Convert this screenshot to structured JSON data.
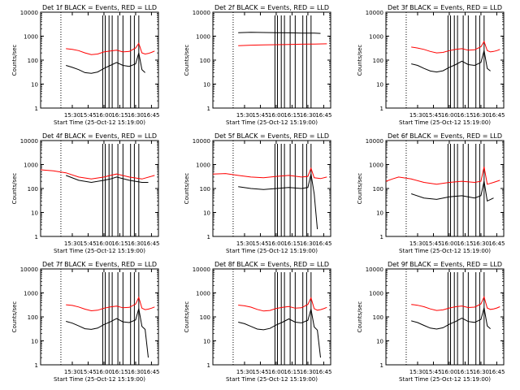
{
  "chart_data": [
    {
      "type": "line",
      "title": "Det 1f BLACK = Events, RED = LLD",
      "xlabel": "Start Time (25-Oct-12 15:19:00)",
      "ylabel": "Counts/sec",
      "xticks": [
        "15:30",
        "15:45",
        "16:00",
        "16:15",
        "16:30",
        "16:45"
      ],
      "yticks": [
        "1",
        "10",
        "100",
        "1000",
        "10000"
      ],
      "ylim": [
        1,
        10000
      ],
      "log_y": true,
      "series": [
        {
          "color": "#ff0000",
          "x": [
            15.4,
            15.5,
            15.6,
            15.7,
            15.8,
            15.9,
            16.0,
            16.1,
            16.2,
            16.3,
            16.4,
            16.5,
            16.55,
            16.6,
            16.65,
            16.7,
            16.75,
            16.8
          ],
          "y": [
            300,
            280,
            250,
            200,
            170,
            180,
            220,
            240,
            260,
            220,
            230,
            320,
            500,
            200,
            180,
            190,
            210,
            240
          ]
        },
        {
          "color": "#000000",
          "x": [
            15.4,
            15.5,
            15.6,
            15.7,
            15.8,
            15.9,
            16.0,
            16.1,
            16.2,
            16.3,
            16.4,
            16.5,
            16.55,
            16.6,
            16.65
          ],
          "y": [
            60,
            50,
            40,
            30,
            28,
            32,
            45,
            60,
            80,
            60,
            55,
            70,
            200,
            40,
            30
          ]
        }
      ]
    },
    {
      "type": "line",
      "title": "Det 2f BLACK = Events, RED = LLD",
      "xlabel": "Start Time (25-Oct-12 15:19:00)",
      "ylabel": "Counts/sec",
      "xticks": [
        "15:30",
        "15:45",
        "16:00",
        "16:15",
        "16:30",
        "16:45"
      ],
      "yticks": [
        "1",
        "10",
        "100",
        "1000",
        "10000"
      ],
      "ylim": [
        1,
        10000
      ],
      "log_y": true,
      "series": [
        {
          "color": "#ff0000",
          "x": [
            15.4,
            15.6,
            15.8,
            16.0,
            16.2,
            16.4,
            16.6,
            16.8
          ],
          "y": [
            400,
            420,
            430,
            440,
            450,
            460,
            470,
            480
          ]
        },
        {
          "color": "#000000",
          "x": [
            15.4,
            15.6,
            15.8,
            16.0,
            16.2,
            16.4,
            16.6,
            16.7
          ],
          "y": [
            1400,
            1450,
            1420,
            1400,
            1380,
            1350,
            1340,
            1300
          ]
        }
      ]
    },
    {
      "type": "line",
      "title": "Det 3f BLACK = Events, RED = LLD",
      "xlabel": "Start Time (25-Oct-12 15:19:00)",
      "ylabel": "Counts/sec",
      "xticks": [
        "15:30",
        "15:45",
        "16:00",
        "16:15",
        "16:30",
        "16:45"
      ],
      "yticks": [
        "1",
        "10",
        "100",
        "1000",
        "10000"
      ],
      "ylim": [
        1,
        10000
      ],
      "log_y": true,
      "series": [
        {
          "color": "#ff0000",
          "x": [
            15.4,
            15.5,
            15.6,
            15.7,
            15.8,
            15.9,
            16.0,
            16.1,
            16.2,
            16.3,
            16.4,
            16.5,
            16.55,
            16.6,
            16.65,
            16.7,
            16.75,
            16.8
          ],
          "y": [
            350,
            320,
            280,
            230,
            200,
            210,
            250,
            280,
            300,
            260,
            270,
            360,
            600,
            250,
            220,
            230,
            250,
            280
          ]
        },
        {
          "color": "#000000",
          "x": [
            15.4,
            15.5,
            15.6,
            15.7,
            15.8,
            15.9,
            16.0,
            16.1,
            16.2,
            16.3,
            16.4,
            16.5,
            16.55,
            16.6,
            16.65
          ],
          "y": [
            70,
            60,
            45,
            35,
            32,
            36,
            50,
            65,
            90,
            65,
            60,
            80,
            250,
            45,
            35
          ]
        }
      ]
    },
    {
      "type": "line",
      "title": "Det 4f BLACK = Events, RED = LLD",
      "xlabel": "Start Time (25-Oct-12 15:19:00)",
      "ylabel": "Counts/sec",
      "xticks": [
        "15:30",
        "15:45",
        "16:00",
        "16:15",
        "16:30",
        "16:45"
      ],
      "yticks": [
        "1",
        "10",
        "100",
        "1000",
        "10000"
      ],
      "ylim": [
        1,
        10000
      ],
      "log_y": true,
      "series": [
        {
          "color": "#ff0000",
          "x": [
            15.0,
            15.2,
            15.4,
            15.6,
            15.8,
            16.0,
            16.1,
            16.2,
            16.4,
            16.6,
            16.8
          ],
          "y": [
            600,
            550,
            450,
            300,
            250,
            300,
            350,
            400,
            300,
            250,
            350
          ]
        },
        {
          "color": "#000000",
          "x": [
            15.4,
            15.6,
            15.8,
            16.0,
            16.1,
            16.2,
            16.4,
            16.6,
            16.7
          ],
          "y": [
            350,
            220,
            180,
            220,
            250,
            300,
            220,
            180,
            180
          ]
        }
      ]
    },
    {
      "type": "line",
      "title": "Det 5f BLACK = Events, RED = LLD",
      "xlabel": "Start Time (25-Oct-12 15:19:00)",
      "ylabel": "Counts/sec",
      "xticks": [
        "15:30",
        "15:45",
        "16:00",
        "16:15",
        "16:30",
        "16:45"
      ],
      "yticks": [
        "1",
        "10",
        "100",
        "1000",
        "10000"
      ],
      "ylim": [
        1,
        10000
      ],
      "log_y": true,
      "series": [
        {
          "color": "#ff0000",
          "x": [
            15.0,
            15.2,
            15.4,
            15.6,
            15.8,
            16.0,
            16.2,
            16.4,
            16.5,
            16.55,
            16.6,
            16.7,
            16.8
          ],
          "y": [
            400,
            420,
            350,
            300,
            280,
            320,
            350,
            300,
            320,
            700,
            280,
            260,
            300
          ]
        },
        {
          "color": "#000000",
          "x": [
            15.4,
            15.6,
            15.8,
            16.0,
            16.2,
            16.4,
            16.5,
            16.55,
            16.6,
            16.65
          ],
          "y": [
            120,
            100,
            90,
            100,
            110,
            100,
            110,
            400,
            60,
            2
          ]
        }
      ]
    },
    {
      "type": "line",
      "title": "Det 6f BLACK = Events, RED = LLD",
      "xlabel": "Start Time (25-Oct-12 15:19:00)",
      "ylabel": "Counts/sec",
      "xticks": [
        "15:30",
        "15:45",
        "16:00",
        "16:15",
        "16:30",
        "16:45"
      ],
      "yticks": [
        "1",
        "10",
        "100",
        "1000",
        "10000"
      ],
      "ylim": [
        1,
        10000
      ],
      "log_y": true,
      "series": [
        {
          "color": "#ff0000",
          "x": [
            15.0,
            15.1,
            15.2,
            15.4,
            15.6,
            15.8,
            16.0,
            16.2,
            16.4,
            16.5,
            16.55,
            16.6,
            16.7,
            16.8
          ],
          "y": [
            200,
            250,
            300,
            250,
            180,
            150,
            180,
            200,
            180,
            200,
            800,
            150,
            180,
            220
          ]
        },
        {
          "color": "#000000",
          "x": [
            15.4,
            15.6,
            15.8,
            16.0,
            16.2,
            16.4,
            16.5,
            16.55,
            16.6,
            16.7
          ],
          "y": [
            60,
            40,
            35,
            45,
            50,
            40,
            50,
            200,
            30,
            40
          ]
        }
      ]
    },
    {
      "type": "line",
      "title": "Det 7f BLACK = Events, RED = LLD",
      "xlabel": "Start Time (25-Oct-12 15:19:00)",
      "ylabel": "Counts/sec",
      "xticks": [
        "15:30",
        "15:45",
        "16:00",
        "16:15",
        "16:30",
        "16:45"
      ],
      "yticks": [
        "1",
        "10",
        "100",
        "1000",
        "10000"
      ],
      "ylim": [
        1,
        10000
      ],
      "log_y": true,
      "series": [
        {
          "color": "#ff0000",
          "x": [
            15.4,
            15.5,
            15.6,
            15.7,
            15.8,
            15.9,
            16.0,
            16.1,
            16.2,
            16.3,
            16.4,
            16.5,
            16.55,
            16.6,
            16.65,
            16.7,
            16.75,
            16.8
          ],
          "y": [
            320,
            300,
            260,
            210,
            180,
            190,
            230,
            260,
            280,
            240,
            250,
            340,
            650,
            230,
            200,
            210,
            230,
            260
          ]
        },
        {
          "color": "#000000",
          "x": [
            15.4,
            15.5,
            15.6,
            15.7,
            15.8,
            15.9,
            16.0,
            16.1,
            16.2,
            16.3,
            16.4,
            16.5,
            16.55,
            16.6,
            16.65,
            16.7
          ],
          "y": [
            65,
            55,
            42,
            32,
            30,
            34,
            48,
            62,
            85,
            62,
            58,
            75,
            220,
            40,
            30,
            2
          ]
        }
      ]
    },
    {
      "type": "line",
      "title": "Det 8f BLACK = Events, RED = LLD",
      "xlabel": "Start Time (25-Oct-12 15:19:00)",
      "ylabel": "Counts/sec",
      "xticks": [
        "15:30",
        "15:45",
        "16:00",
        "16:15",
        "16:30",
        "16:45"
      ],
      "yticks": [
        "1",
        "10",
        "100",
        "1000",
        "10000"
      ],
      "ylim": [
        1,
        10000
      ],
      "log_y": true,
      "series": [
        {
          "color": "#ff0000",
          "x": [
            15.4,
            15.5,
            15.6,
            15.7,
            15.8,
            15.9,
            16.0,
            16.1,
            16.2,
            16.3,
            16.4,
            16.5,
            16.55,
            16.6,
            16.65,
            16.7,
            16.75,
            16.8
          ],
          "y": [
            310,
            290,
            255,
            205,
            175,
            185,
            225,
            250,
            270,
            230,
            240,
            330,
            620,
            220,
            190,
            200,
            220,
            250
          ]
        },
        {
          "color": "#000000",
          "x": [
            15.4,
            15.5,
            15.6,
            15.7,
            15.8,
            15.9,
            16.0,
            16.1,
            16.2,
            16.3,
            16.4,
            16.5,
            16.55,
            16.6,
            16.65,
            16.7
          ],
          "y": [
            60,
            52,
            40,
            31,
            29,
            33,
            46,
            60,
            82,
            60,
            56,
            72,
            210,
            38,
            28,
            2
          ]
        }
      ]
    },
    {
      "type": "line",
      "title": "Det 9f BLACK = Events, RED = LLD",
      "xlabel": "Start Time (25-Oct-12 15:19:00)",
      "ylabel": "Counts/sec",
      "xticks": [
        "15:30",
        "15:45",
        "16:00",
        "16:15",
        "16:30",
        "16:45"
      ],
      "yticks": [
        "1",
        "10",
        "100",
        "1000",
        "10000"
      ],
      "ylim": [
        1,
        10000
      ],
      "log_y": true,
      "series": [
        {
          "color": "#ff0000",
          "x": [
            15.4,
            15.5,
            15.6,
            15.7,
            15.8,
            15.9,
            16.0,
            16.1,
            16.2,
            16.3,
            16.4,
            16.5,
            16.55,
            16.6,
            16.65,
            16.7,
            16.75,
            16.8
          ],
          "y": [
            330,
            305,
            265,
            215,
            185,
            195,
            235,
            265,
            285,
            245,
            255,
            345,
            680,
            235,
            205,
            215,
            235,
            265
          ]
        },
        {
          "color": "#000000",
          "x": [
            15.4,
            15.5,
            15.6,
            15.7,
            15.8,
            15.9,
            16.0,
            16.1,
            16.2,
            16.3,
            16.4,
            16.5,
            16.55,
            16.6,
            16.65
          ],
          "y": [
            68,
            58,
            44,
            34,
            31,
            35,
            49,
            64,
            88,
            64,
            59,
            78,
            240,
            42,
            32
          ]
        }
      ]
    }
  ]
}
